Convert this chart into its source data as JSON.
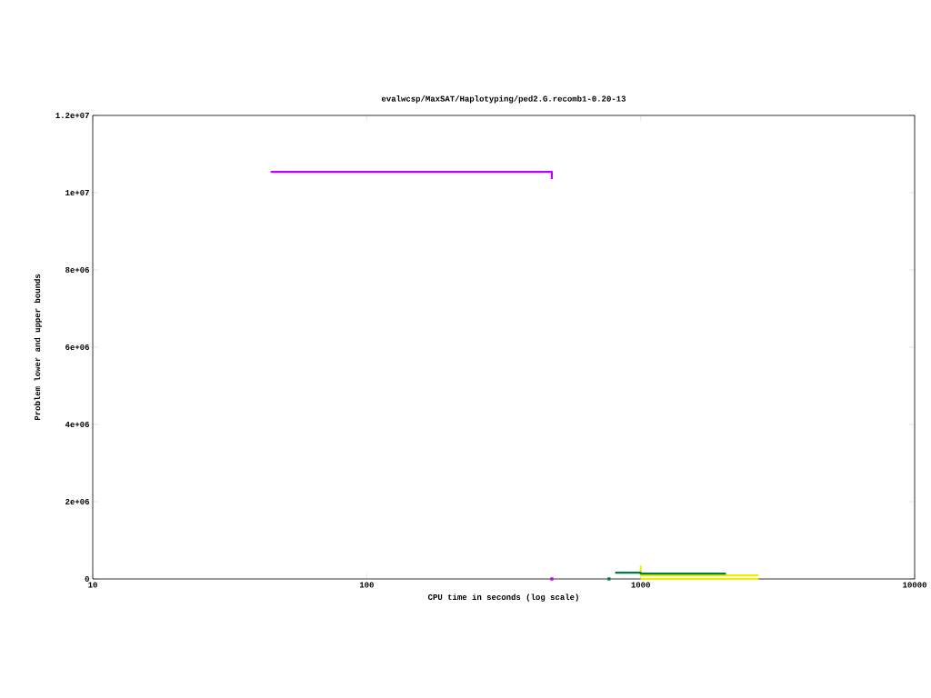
{
  "chart_data": {
    "type": "line",
    "title": "evalwcsp/MaxSAT/Haplotyping/ped2.G.recomb1-0.20-13",
    "xlabel": "CPU time in seconds (log scale)",
    "ylabel": "Problem lower and upper bounds",
    "log": "x",
    "xlim": [
      10,
      10000
    ],
    "xticks": [
      10,
      100,
      1000,
      10000
    ],
    "ylim": [
      0,
      12000000
    ],
    "yticks": [
      0,
      {
        "value": 2000000,
        "label": "2e+06"
      },
      {
        "value": 4000000,
        "label": "4e+06"
      },
      {
        "value": 6000000,
        "label": "6e+06"
      },
      {
        "value": 8000000,
        "label": "8e+06"
      },
      {
        "value": 10000000,
        "label": "1e+07"
      },
      {
        "value": 12000000,
        "label": "1.2e+07"
      }
    ],
    "series": [
      {
        "color": "#c000ff",
        "x": [
          44.6,
          474,
          474
        ],
        "values": [
          10540000,
          10540000,
          10350000
        ]
      },
      {
        "type": "scatter",
        "marker": "square",
        "color": "#c000ff",
        "x": [
          474
        ],
        "values": [
          0
        ]
      },
      {
        "color": "#eeee00",
        "x": [
          1000,
          1000,
          2690
        ],
        "values": [
          350000,
          90000,
          90000
        ]
      },
      {
        "color": "#eeee00",
        "x": [
          1000,
          2690
        ],
        "values": [
          0,
          0
        ]
      },
      {
        "color": "#008040",
        "x": [
          807,
          1000,
          1000,
          2047
        ],
        "values": [
          160000,
          160000,
          140000,
          140000
        ]
      },
      {
        "type": "scatter",
        "marker": "square",
        "color": "#008040",
        "x": [
          766
        ],
        "values": [
          0
        ]
      }
    ]
  }
}
